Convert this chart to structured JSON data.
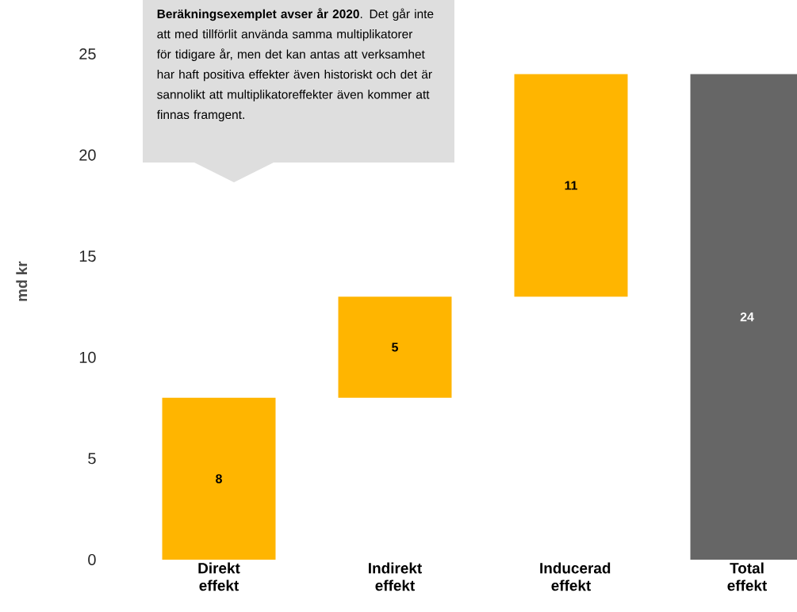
{
  "chart_data": {
    "type": "bar",
    "ylabel": "md kr",
    "categories": [
      "Direkt effekt",
      "Indirekt effekt",
      "Inducerad effekt",
      "Total effekt"
    ],
    "values": [
      8,
      5,
      11,
      24
    ],
    "base": [
      0,
      8,
      13,
      0
    ],
    "colors": [
      "#ffb500",
      "#ffb500",
      "#ffb500",
      "#666666"
    ],
    "ylim": [
      0,
      25
    ],
    "yticks": [
      0,
      5,
      10,
      15,
      20,
      25
    ],
    "data_labels": true,
    "annotations": [
      "**Beräkningsexemplet avser år 2020**. Det går inte att med tillförlit använda samma multiplikatorer för tidigare år, men det kan antas att verksamhet har haft positiva effekter även historiskt och det är sannolikt att multiplikatoreffekter även kommer att finnas framgent."
    ]
  }
}
